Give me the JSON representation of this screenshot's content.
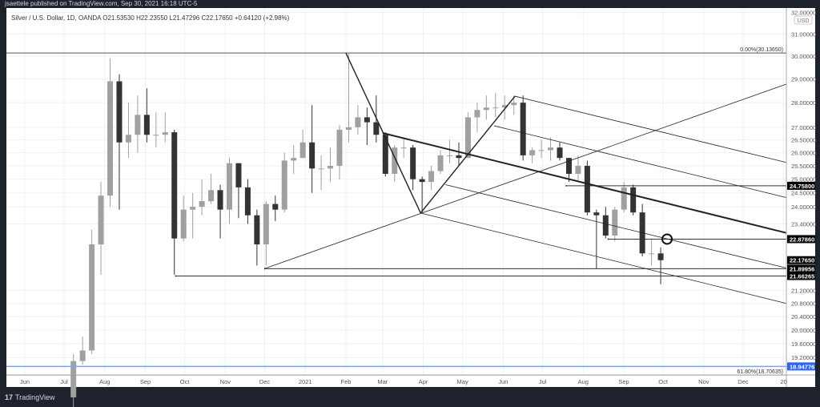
{
  "header": {
    "publisher": "jsaettele published on TradingView.com, Sep 30, 2021 16:18 UTC-5"
  },
  "legend": {
    "text": "Silver / U.S. Dollar, 1D, OANDA  O21.53530  H22.23550  L21.47296  C22.17650  +0.64120 (+2.98%)"
  },
  "footer": {
    "logo": "TradingView",
    "logo_mark": "17"
  },
  "colors": {
    "background": "#1e222d",
    "up_candle": "#a0a0a0",
    "down_candle": "#333333",
    "line": "#222222",
    "blue_line": "#6fa8ff",
    "blue_label": "#2962ff",
    "grid": "#edf2f8"
  },
  "chart_data": {
    "type": "candlestick",
    "scale": "log",
    "ylim": [
      18.7,
      32.0
    ],
    "xlim": [
      "2020-05-15",
      "2022-01-03"
    ],
    "currency_badge": "USD",
    "y_ticks": [
      {
        "v": 32,
        "t": "32.00000"
      },
      {
        "v": 31,
        "t": "31.00000"
      },
      {
        "v": 30,
        "t": "30.00000"
      },
      {
        "v": 29,
        "t": "29.00000"
      },
      {
        "v": 28,
        "t": "28.00000"
      },
      {
        "v": 27,
        "t": "27.00000"
      },
      {
        "v": 26.5,
        "t": "26.50000"
      },
      {
        "v": 26,
        "t": "26.00000"
      },
      {
        "v": 25.5,
        "t": "25.50000"
      },
      {
        "v": 25,
        "t": "25.00000"
      },
      {
        "v": 24.5,
        "t": "24.50000"
      },
      {
        "v": 24,
        "t": "24.00000"
      },
      {
        "v": 23.4,
        "t": "23.40000"
      },
      {
        "v": 21.2,
        "t": "21.20000"
      },
      {
        "v": 20.8,
        "t": "20.80000"
      },
      {
        "v": 20.4,
        "t": "20.40000"
      },
      {
        "v": 20,
        "t": "20.00000"
      },
      {
        "v": 19.6,
        "t": "19.60000"
      },
      {
        "v": 19.2,
        "t": "19.20000"
      }
    ],
    "x_ticks": [
      {
        "d": "2020-06-01",
        "t": "Jun"
      },
      {
        "d": "2020-07-01",
        "t": "Jul"
      },
      {
        "d": "2020-08-01",
        "t": "Aug"
      },
      {
        "d": "2020-09-01",
        "t": "Sep"
      },
      {
        "d": "2020-10-01",
        "t": "Oct"
      },
      {
        "d": "2020-11-01",
        "t": "Nov"
      },
      {
        "d": "2020-12-01",
        "t": "Dec"
      },
      {
        "d": "2021-01-01",
        "t": "2021"
      },
      {
        "d": "2021-02-01",
        "t": "Feb"
      },
      {
        "d": "2021-03-01",
        "t": "Mar"
      },
      {
        "d": "2021-04-01",
        "t": "Apr"
      },
      {
        "d": "2021-05-01",
        "t": "May"
      },
      {
        "d": "2021-06-01",
        "t": "Jun"
      },
      {
        "d": "2021-07-01",
        "t": "Jul"
      },
      {
        "d": "2021-08-01",
        "t": "Aug"
      },
      {
        "d": "2021-09-01",
        "t": "Sep"
      },
      {
        "d": "2021-10-01",
        "t": "Oct"
      },
      {
        "d": "2021-11-01",
        "t": "Nov"
      },
      {
        "d": "2021-12-01",
        "t": "Dec"
      },
      {
        "d": "2022-01-01",
        "t": "20"
      }
    ],
    "price_labels": [
      {
        "v": 24.758,
        "t": "24.75800",
        "style": "dark"
      },
      {
        "v": 22.8786,
        "t": "22.87860",
        "style": "dark"
      },
      {
        "v": 22.1765,
        "t": "22.17650",
        "style": "dark"
      },
      {
        "v": 21.89956,
        "t": "21.89956",
        "style": "dark"
      },
      {
        "v": 21.66265,
        "t": "21.66265",
        "style": "dark"
      },
      {
        "v": 18.94776,
        "t": "18.94776",
        "style": "blue"
      }
    ],
    "fib_levels": [
      {
        "v": 30.1365,
        "t": "0.00%(30.13650)"
      },
      {
        "v": 18.70635,
        "t": "61.80%(18.70635)"
      }
    ],
    "horizontal_lines": [
      {
        "from": "2020-05-15",
        "v": 18.94776,
        "color": "blue"
      },
      {
        "from": "2020-09-24",
        "v": 21.66265
      },
      {
        "from": "2020-12-01",
        "v": 21.89956
      },
      {
        "from": "2021-07-19",
        "v": 24.758
      },
      {
        "from": "2021-08-20",
        "v": 22.8786
      }
    ],
    "trend_lines": [
      {
        "a": [
          "2021-02-01",
          30.1365
        ],
        "b": [
          "2021-03-30",
          23.78
        ],
        "w": 1.4
      },
      {
        "a": [
          "2021-03-30",
          23.78
        ],
        "b": [
          "2021-06-10",
          28.27
        ],
        "w": 1.4
      },
      {
        "a": [
          "2021-03-01",
          26.77
        ],
        "b": [
          "2022-01-03",
          23.09
        ],
        "w": 2
      },
      {
        "a": [
          "2020-12-01",
          21.9
        ],
        "b": [
          "2022-01-03",
          28.78
        ],
        "w": 0.8
      },
      {
        "a": [
          "2021-06-10",
          28.27
        ],
        "b": [
          "2022-01-03",
          25.63
        ],
        "w": 0.8
      },
      {
        "a": [
          "2021-05-25",
          27.06
        ],
        "b": [
          "2022-01-03",
          24.33
        ],
        "w": 0.8
      },
      {
        "a": [
          "2021-04-18",
          24.8
        ],
        "b": [
          "2022-01-03",
          21.92
        ],
        "w": 0.8
      },
      {
        "a": [
          "2021-03-30",
          23.78
        ],
        "b": [
          "2022-01-03",
          20.8
        ],
        "w": 0.8
      }
    ],
    "circle_marker": {
      "d": "2021-10-04",
      "v": 22.8786
    },
    "candles_weekly": [
      [
        "2020-07-06",
        18.1,
        19.3,
        17.8,
        19.1
      ],
      [
        "2020-07-13",
        19.1,
        19.8,
        19.0,
        19.4
      ],
      [
        "2020-07-20",
        19.4,
        23.2,
        19.3,
        22.7
      ],
      [
        "2020-07-27",
        22.7,
        24.9,
        21.7,
        24.4
      ],
      [
        "2020-08-03",
        24.4,
        29.9,
        24.0,
        28.9
      ],
      [
        "2020-08-10",
        28.9,
        29.2,
        23.9,
        26.4
      ],
      [
        "2020-08-17",
        26.4,
        28.0,
        25.8,
        26.7
      ],
      [
        "2020-08-24",
        26.7,
        28.3,
        26.0,
        27.5
      ],
      [
        "2020-08-31",
        27.5,
        28.6,
        26.4,
        26.7
      ],
      [
        "2020-09-07",
        26.7,
        27.6,
        26.2,
        26.7
      ],
      [
        "2020-09-14",
        26.7,
        27.6,
        26.4,
        26.8
      ],
      [
        "2020-09-21",
        26.8,
        26.9,
        21.7,
        22.9
      ],
      [
        "2020-09-28",
        22.9,
        24.4,
        22.8,
        23.9
      ],
      [
        "2020-10-05",
        23.9,
        24.5,
        22.9,
        24.0
      ],
      [
        "2020-10-12",
        24.0,
        25.0,
        23.7,
        24.2
      ],
      [
        "2020-10-19",
        24.2,
        25.2,
        24.1,
        24.6
      ],
      [
        "2020-10-26",
        24.6,
        24.8,
        22.9,
        23.9
      ],
      [
        "2020-11-02",
        23.9,
        25.8,
        23.4,
        25.6
      ],
      [
        "2020-11-09",
        25.6,
        25.6,
        23.6,
        24.7
      ],
      [
        "2020-11-16",
        24.7,
        25.0,
        23.4,
        23.7
      ],
      [
        "2020-11-23",
        23.7,
        23.9,
        22.0,
        22.7
      ],
      [
        "2020-11-30",
        22.7,
        24.2,
        22.0,
        24.1
      ],
      [
        "2020-12-07",
        24.1,
        24.4,
        23.5,
        23.9
      ],
      [
        "2020-12-14",
        23.9,
        26.0,
        23.8,
        25.7
      ],
      [
        "2020-12-21",
        25.7,
        26.3,
        25.2,
        25.8
      ],
      [
        "2020-12-28",
        25.8,
        26.9,
        25.8,
        26.4
      ],
      [
        "2021-01-04",
        26.4,
        27.9,
        24.5,
        25.4
      ],
      [
        "2021-01-11",
        25.4,
        25.9,
        24.6,
        25.4
      ],
      [
        "2021-01-18",
        25.4,
        26.2,
        24.9,
        25.5
      ],
      [
        "2021-01-25",
        25.5,
        27.1,
        25.0,
        26.9
      ],
      [
        "2021-02-01",
        26.9,
        30.1,
        26.4,
        27.0
      ],
      [
        "2021-02-08",
        27.0,
        27.9,
        26.7,
        27.4
      ],
      [
        "2021-02-15",
        27.4,
        27.8,
        26.3,
        27.2
      ],
      [
        "2021-02-22",
        27.2,
        28.3,
        26.4,
        26.7
      ],
      [
        "2021-03-01",
        26.7,
        26.8,
        25.1,
        25.2
      ],
      [
        "2021-03-08",
        25.2,
        26.3,
        24.9,
        26.2
      ],
      [
        "2021-03-15",
        26.2,
        26.6,
        25.8,
        26.2
      ],
      [
        "2021-03-22",
        26.2,
        26.3,
        24.6,
        25.0
      ],
      [
        "2021-03-29",
        25.0,
        25.1,
        23.8,
        24.9
      ],
      [
        "2021-04-05",
        24.9,
        25.5,
        24.6,
        25.3
      ],
      [
        "2021-04-12",
        25.3,
        26.1,
        25.2,
        25.9
      ],
      [
        "2021-04-19",
        25.9,
        26.5,
        25.6,
        25.9
      ],
      [
        "2021-04-26",
        25.9,
        26.4,
        25.5,
        25.8
      ],
      [
        "2021-05-03",
        25.8,
        27.6,
        25.8,
        27.4
      ],
      [
        "2021-05-10",
        27.4,
        28.0,
        26.8,
        27.7
      ],
      [
        "2021-05-17",
        27.7,
        28.3,
        27.3,
        27.8
      ],
      [
        "2021-05-24",
        27.8,
        28.4,
        27.4,
        27.8
      ],
      [
        "2021-05-31",
        27.8,
        28.3,
        27.3,
        27.9
      ],
      [
        "2021-06-07",
        27.9,
        28.3,
        27.5,
        28.0
      ],
      [
        "2021-06-14",
        28.0,
        28.3,
        25.7,
        25.9
      ],
      [
        "2021-06-21",
        25.9,
        26.2,
        25.6,
        26.1
      ],
      [
        "2021-06-28",
        26.1,
        26.5,
        25.8,
        26.1
      ],
      [
        "2021-07-05",
        26.1,
        26.6,
        25.7,
        26.2
      ],
      [
        "2021-07-12",
        26.2,
        26.4,
        25.7,
        25.8
      ],
      [
        "2021-07-19",
        25.8,
        25.8,
        24.9,
        25.2
      ],
      [
        "2021-07-26",
        25.2,
        25.9,
        24.9,
        25.5
      ],
      [
        "2021-08-02",
        25.5,
        25.7,
        23.7,
        23.8
      ],
      [
        "2021-08-09",
        23.8,
        23.9,
        21.9,
        23.7
      ],
      [
        "2021-08-16",
        23.7,
        24.0,
        22.9,
        23.0
      ],
      [
        "2021-08-23",
        23.0,
        24.0,
        22.8,
        23.9
      ],
      [
        "2021-08-30",
        23.9,
        24.9,
        23.8,
        24.7
      ],
      [
        "2021-09-06",
        24.7,
        24.8,
        23.7,
        23.8
      ],
      [
        "2021-09-13",
        23.8,
        24.1,
        22.3,
        22.4
      ],
      [
        "2021-09-20",
        22.4,
        22.9,
        22.0,
        22.4
      ],
      [
        "2021-09-27",
        22.4,
        22.6,
        21.4,
        22.1765
      ]
    ]
  }
}
